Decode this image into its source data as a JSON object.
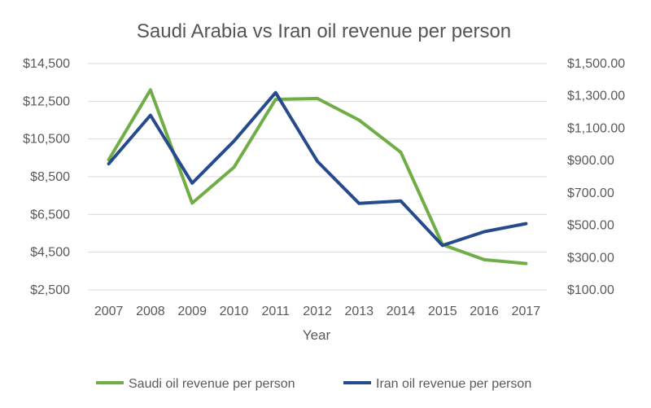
{
  "chart_data": {
    "type": "line",
    "title": "Saudi Arabia vs Iran oil revenue per person",
    "xlabel": "Year",
    "ylabel_left": "",
    "ylabel_right": "",
    "x": [
      "2007",
      "2008",
      "2009",
      "2010",
      "2011",
      "2012",
      "2013",
      "2014",
      "2015",
      "2016",
      "2017"
    ],
    "y_left": {
      "lim": [
        2500,
        14500
      ],
      "ticks": [
        2500,
        4500,
        6500,
        8500,
        10500,
        12500,
        14500
      ],
      "tick_labels": [
        "$2,500",
        "$4,500",
        "$6,500",
        "$8,500",
        "$10,500",
        "$12,500",
        "$14,500"
      ]
    },
    "y_right": {
      "lim": [
        100,
        1500
      ],
      "ticks": [
        100,
        300,
        500,
        700,
        900,
        1100,
        1300,
        1500
      ],
      "tick_labels": [
        "$100.00",
        "$300.00",
        "$500.00",
        "$700.00",
        "$900.00",
        "$1,100.00",
        "$1,300.00",
        "$1,500.00"
      ]
    },
    "grid": true,
    "legend_position": "bottom",
    "series": [
      {
        "name": "Saudi oil revenue per person",
        "axis": "left",
        "color": "#70ad47",
        "values": [
          9400,
          13100,
          7100,
          9000,
          12600,
          12650,
          11500,
          9800,
          4900,
          4100,
          3900
        ]
      },
      {
        "name": "Iran oil revenue per person",
        "axis": "right",
        "color": "#264b8c",
        "values": [
          880,
          1180,
          760,
          1020,
          1320,
          895,
          635,
          650,
          375,
          460,
          510
        ]
      }
    ]
  }
}
